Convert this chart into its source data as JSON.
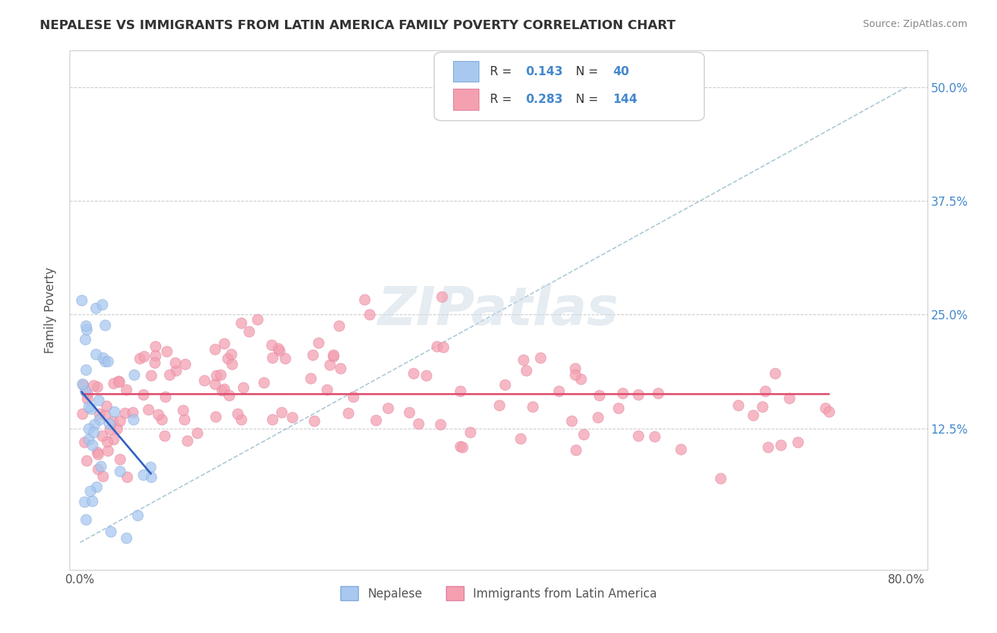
{
  "title": "NEPALESE VS IMMIGRANTS FROM LATIN AMERICA FAMILY POVERTY CORRELATION CHART",
  "source": "Source: ZipAtlas.com",
  "ylabel": "Family Poverty",
  "background_color": "#ffffff",
  "legend_R1": "0.143",
  "legend_N1": "40",
  "legend_R2": "0.283",
  "legend_N2": "144",
  "nepalese_color": "#a8c8f0",
  "latin_color": "#f4a0b0",
  "nepalese_edge_color": "#80a8d8",
  "latin_edge_color": "#e080a0",
  "nepalese_line_color": "#3060c0",
  "latin_line_color": "#e05070",
  "diag_line_color": "#a0c0d0",
  "grid_color": "#cccccc",
  "right_tick_color": "#4488cc",
  "title_color": "#333333",
  "source_color": "#888888",
  "ylabel_color": "#555555",
  "watermark_color": "#d0dde8",
  "watermark_text": "ZIPatlas",
  "ytick_positions": [
    0.0,
    0.125,
    0.25,
    0.375,
    0.5
  ],
  "ytick_labels": [
    "",
    "12.5%",
    "25.0%",
    "37.5%",
    "50.0%"
  ],
  "xtick_positions": [
    0.0,
    0.1,
    0.2,
    0.3,
    0.4,
    0.5,
    0.6,
    0.7,
    0.8
  ],
  "xtick_labels": [
    "0.0%",
    "",
    "",
    "",
    "",
    "",
    "",
    "",
    "80.0%"
  ]
}
